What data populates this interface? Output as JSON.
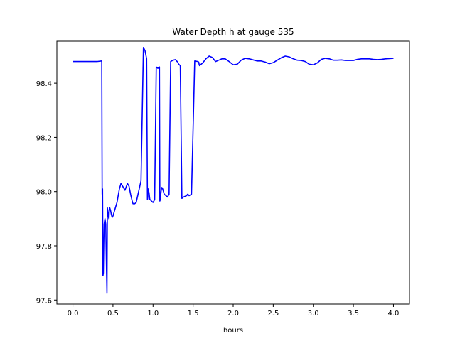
{
  "chart_data": {
    "type": "line",
    "title": "Water Depth h at gauge 535",
    "xlabel": "hours",
    "ylabel": "",
    "xlim": [
      -0.2,
      4.2
    ],
    "ylim": [
      97.585,
      98.555
    ],
    "xticks": [
      0.0,
      0.5,
      1.0,
      1.5,
      2.0,
      2.5,
      3.0,
      3.5,
      4.0
    ],
    "xtick_labels": [
      "0.0",
      "0.5",
      "1.0",
      "1.5",
      "2.0",
      "2.5",
      "3.0",
      "3.5",
      "4.0"
    ],
    "yticks": [
      97.6,
      97.8,
      98.0,
      98.2,
      98.4
    ],
    "ytick_labels": [
      "97.6",
      "97.8",
      "98.0",
      "98.2",
      "98.4"
    ],
    "grid": false,
    "series": [
      {
        "color": "#0000ff",
        "x": [
          0.0,
          0.1,
          0.2,
          0.3,
          0.36,
          0.365,
          0.37,
          0.375,
          0.38,
          0.385,
          0.39,
          0.4,
          0.41,
          0.42,
          0.425,
          0.43,
          0.44,
          0.445,
          0.45,
          0.455,
          0.46,
          0.47,
          0.48,
          0.49,
          0.5,
          0.52,
          0.55,
          0.58,
          0.6,
          0.62,
          0.65,
          0.68,
          0.7,
          0.72,
          0.74,
          0.75,
          0.77,
          0.79,
          0.82,
          0.85,
          0.88,
          0.9,
          0.92,
          0.93,
          0.935,
          0.94,
          0.95,
          0.96,
          0.965,
          0.98,
          1.0,
          1.02,
          1.04,
          1.06,
          1.08,
          1.085,
          1.09,
          1.1,
          1.105,
          1.11,
          1.12,
          1.14,
          1.16,
          1.18,
          1.2,
          1.22,
          1.25,
          1.28,
          1.3,
          1.305,
          1.32,
          1.34,
          1.36,
          1.38,
          1.42,
          1.43,
          1.435,
          1.45,
          1.48,
          1.52,
          1.56,
          1.57,
          1.575,
          1.58,
          1.62,
          1.66,
          1.7,
          1.74,
          1.78,
          1.82,
          1.86,
          1.9,
          1.95,
          2.0,
          2.05,
          2.1,
          2.15,
          2.2,
          2.25,
          2.3,
          2.35,
          2.4,
          2.45,
          2.5,
          2.55,
          2.6,
          2.65,
          2.7,
          2.75,
          2.8,
          2.85,
          2.9,
          2.95,
          3.0,
          3.05,
          3.1,
          3.15,
          3.2,
          3.25,
          3.3,
          3.35,
          3.4,
          3.45,
          3.5,
          3.55,
          3.6,
          3.65,
          3.7,
          3.75,
          3.8,
          3.85,
          3.9,
          3.95,
          4.0
        ],
        "y": [
          98.48,
          98.48,
          98.48,
          98.48,
          98.482,
          97.99,
          98.01,
          97.69,
          97.7,
          97.8,
          97.88,
          97.9,
          97.88,
          97.7,
          97.625,
          97.94,
          97.92,
          97.905,
          97.9,
          97.94,
          97.94,
          97.93,
          97.915,
          97.905,
          97.91,
          97.93,
          97.96,
          98.01,
          98.03,
          98.02,
          98.005,
          98.03,
          98.02,
          97.99,
          97.965,
          97.955,
          97.955,
          97.96,
          98.0,
          98.04,
          98.532,
          98.52,
          98.49,
          97.97,
          97.98,
          98.01,
          97.995,
          97.97,
          97.97,
          97.965,
          97.96,
          97.97,
          98.46,
          98.455,
          98.46,
          97.965,
          97.97,
          98.0,
          98.01,
          98.015,
          98.01,
          97.99,
          97.985,
          97.98,
          97.99,
          98.48,
          98.485,
          98.487,
          98.48,
          98.48,
          98.47,
          98.465,
          97.975,
          97.98,
          97.985,
          97.99,
          97.99,
          97.985,
          97.99,
          98.482,
          98.48,
          98.478,
          98.47,
          98.465,
          98.475,
          98.49,
          98.5,
          98.495,
          98.48,
          98.485,
          98.49,
          98.49,
          98.48,
          98.468,
          98.47,
          98.485,
          98.492,
          98.49,
          98.486,
          98.482,
          98.482,
          98.478,
          98.472,
          98.476,
          98.485,
          98.494,
          98.5,
          98.497,
          98.49,
          98.485,
          98.484,
          98.48,
          98.47,
          98.468,
          98.475,
          98.488,
          98.492,
          98.49,
          98.485,
          98.485,
          98.486,
          98.484,
          98.484,
          98.484,
          98.488,
          98.49,
          98.49,
          98.49,
          98.488,
          98.487,
          98.488,
          98.49,
          98.491,
          98.492
        ]
      }
    ]
  }
}
